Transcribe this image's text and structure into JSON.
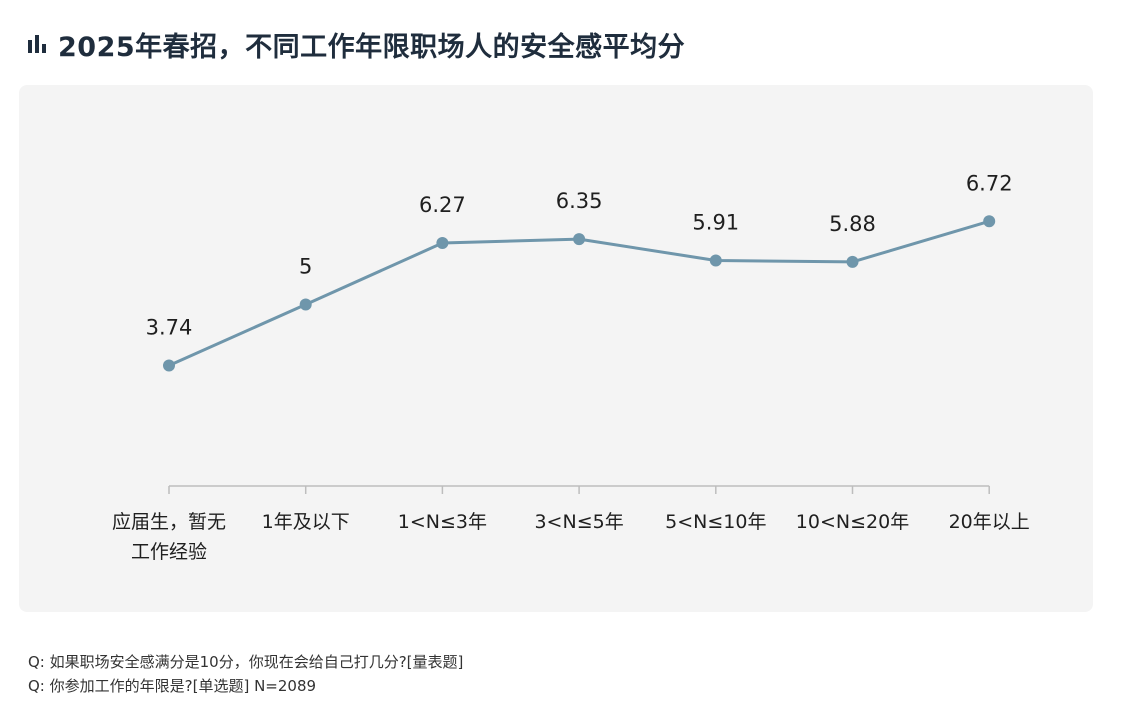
{
  "title": "2025年春招，不同工作年限职场人的安全感平均分",
  "icon": "bar-chart-icon",
  "colors": {
    "line": "#6f96ab",
    "point": "#6f96ab",
    "axis": "#bdbdbd",
    "card_bg": "#f4f4f4",
    "title": "#1f2d3d"
  },
  "chart_data": {
    "type": "line",
    "categories": [
      [
        "应届生，暂无",
        "工作经验"
      ],
      [
        "1年及以下"
      ],
      [
        "1<N≤3年"
      ],
      [
        "3<N≤5年"
      ],
      [
        "5<N≤10年"
      ],
      [
        "10<N≤20年"
      ],
      [
        "20年以上"
      ]
    ],
    "values": [
      3.74,
      5,
      6.27,
      6.35,
      5.91,
      5.88,
      6.72
    ],
    "value_labels": [
      "3.74",
      "5",
      "6.27",
      "6.35",
      "5.91",
      "5.88",
      "6.72"
    ],
    "ylim": [
      1.25,
      8.75
    ],
    "grid": false,
    "legend": "none"
  },
  "footnotes": [
    "Q:  如果职场安全感满分是10分，你现在会给自己打几分?[量表题]",
    "Q:  你参加工作的年限是?[单选题]   N=2089"
  ]
}
